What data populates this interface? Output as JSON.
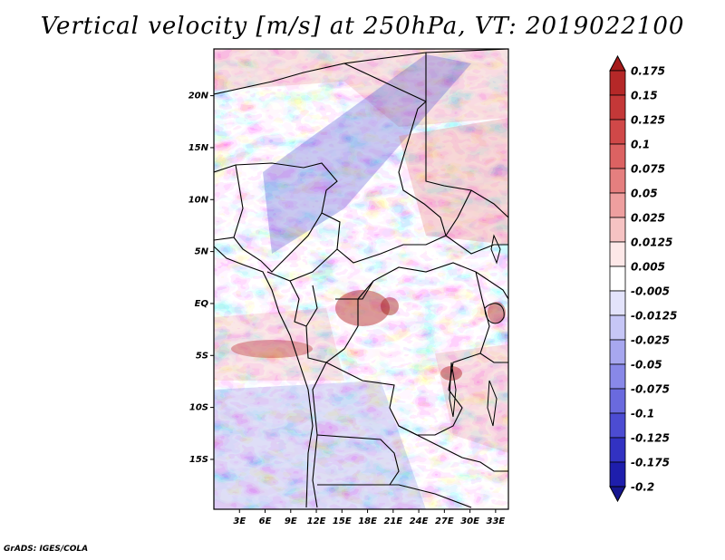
{
  "title": "Vertical velocity [m/s] at 250hPa, VT: 2019022100",
  "credit": "GrADS: IGES/COLA",
  "map": {
    "lat_labels": [
      "20N",
      "15N",
      "10N",
      "5N",
      "EQ",
      "5S",
      "10S",
      "15S"
    ],
    "lon_labels": [
      "3E",
      "6E",
      "9E",
      "12E",
      "15E",
      "18E",
      "21E",
      "24E",
      "27E",
      "30E",
      "33E"
    ],
    "lat_range": [
      -19.8,
      24.5
    ],
    "lon_range": [
      0,
      34.5
    ],
    "lat_ticks": [
      20,
      15,
      10,
      5,
      0,
      -5,
      -10,
      -15
    ],
    "lon_ticks": [
      3,
      6,
      9,
      12,
      15,
      18,
      21,
      24,
      27,
      30,
      33
    ]
  },
  "colorbar": {
    "labels": [
      "0.175",
      "0.15",
      "0.125",
      "0.1",
      "0.075",
      "0.05",
      "0.025",
      "0.0125",
      "0.005",
      "-0.005",
      "-0.0125",
      "-0.025",
      "-0.05",
      "-0.075",
      "-0.1",
      "-0.125",
      "-0.175",
      "-0.2"
    ],
    "colors": [
      "#a51a1a",
      "#b52828",
      "#c43838",
      "#d04848",
      "#dc6262",
      "#e57f7f",
      "#ee9f9f",
      "#f6c3c3",
      "#fde8e8",
      "#ffffff",
      "#e3e3fb",
      "#c6c6f6",
      "#a7a7ef",
      "#8888e8",
      "#6a6ade",
      "#4c4cd2",
      "#3232c2",
      "#1e1eac",
      "#161690"
    ]
  },
  "colors": {
    "positive": "#e05050",
    "negative": "#4040d0",
    "border": "#000000"
  }
}
